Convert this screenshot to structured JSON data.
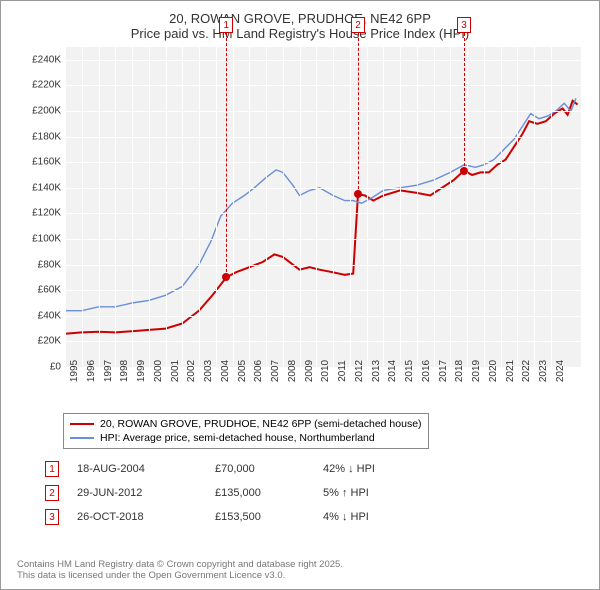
{
  "title_line1": "20, ROWAN GROVE, PRUDHOE, NE42 6PP",
  "title_line2": "Price paid vs. HM Land Registry's House Price Index (HPI)",
  "chart": {
    "type": "line",
    "background_color": "#f2f2f2",
    "grid_color": "#ffffff",
    "ylim": [
      0,
      250000
    ],
    "ytick_step": 20000,
    "ylabels": [
      "£0",
      "£20K",
      "£40K",
      "£60K",
      "£80K",
      "£100K",
      "£120K",
      "£140K",
      "£160K",
      "£180K",
      "£200K",
      "£220K",
      "£240K"
    ],
    "xlabels": [
      "1995",
      "1996",
      "1997",
      "1998",
      "1999",
      "2000",
      "2001",
      "2002",
      "2003",
      "2004",
      "2005",
      "2006",
      "2007",
      "2008",
      "2009",
      "2010",
      "2011",
      "2012",
      "2013",
      "2014",
      "2015",
      "2016",
      "2017",
      "2018",
      "2019",
      "2020",
      "2021",
      "2022",
      "2023",
      "2024"
    ],
    "xmin": 1995,
    "xmax": 2025.8,
    "series": [
      {
        "name": "20, ROWAN GROVE, PRUDHOE, NE42 6PP (semi-detached house)",
        "color": "#cc0000",
        "width": 2,
        "data": [
          [
            1995,
            26000
          ],
          [
            1996,
            27000
          ],
          [
            1997,
            27500
          ],
          [
            1998,
            27000
          ],
          [
            1999,
            28000
          ],
          [
            2000,
            29000
          ],
          [
            2001,
            30000
          ],
          [
            2002,
            34000
          ],
          [
            2003,
            44000
          ],
          [
            2003.8,
            56000
          ],
          [
            2004.63,
            70000
          ],
          [
            2005.2,
            74000
          ],
          [
            2006,
            78000
          ],
          [
            2006.8,
            82000
          ],
          [
            2007.5,
            88000
          ],
          [
            2008,
            86000
          ],
          [
            2008.6,
            80000
          ],
          [
            2009,
            76000
          ],
          [
            2009.6,
            78000
          ],
          [
            2010.2,
            76000
          ],
          [
            2011,
            74000
          ],
          [
            2011.7,
            72000
          ],
          [
            2012.2,
            73000
          ],
          [
            2012.49,
            135000
          ],
          [
            2012.9,
            134000
          ],
          [
            2013.4,
            130000
          ],
          [
            2014,
            134000
          ],
          [
            2015,
            138000
          ],
          [
            2016,
            136000
          ],
          [
            2016.8,
            134000
          ],
          [
            2017.5,
            140000
          ],
          [
            2018.2,
            146000
          ],
          [
            2018.82,
            153500
          ],
          [
            2019.3,
            150000
          ],
          [
            2019.8,
            152000
          ],
          [
            2020.3,
            152000
          ],
          [
            2020.8,
            158000
          ],
          [
            2021.3,
            162000
          ],
          [
            2021.8,
            172000
          ],
          [
            2022.3,
            182000
          ],
          [
            2022.7,
            192000
          ],
          [
            2023.2,
            190000
          ],
          [
            2023.7,
            192000
          ],
          [
            2024.2,
            198000
          ],
          [
            2024.7,
            202000
          ],
          [
            2025.0,
            197000
          ],
          [
            2025.3,
            208000
          ],
          [
            2025.6,
            205000
          ]
        ]
      },
      {
        "name": "HPI: Average price, semi-detached house, Northumberland",
        "color": "#6a8fd8",
        "width": 1.4,
        "data": [
          [
            1995,
            44000
          ],
          [
            1996,
            44000
          ],
          [
            1997,
            47000
          ],
          [
            1998,
            47000
          ],
          [
            1999,
            50000
          ],
          [
            2000,
            52000
          ],
          [
            2001,
            56000
          ],
          [
            2002,
            63000
          ],
          [
            2003,
            80000
          ],
          [
            2003.7,
            98000
          ],
          [
            2004.3,
            118000
          ],
          [
            2005,
            128000
          ],
          [
            2005.7,
            134000
          ],
          [
            2006.3,
            140000
          ],
          [
            2007,
            148000
          ],
          [
            2007.6,
            154000
          ],
          [
            2008,
            152000
          ],
          [
            2008.6,
            142000
          ],
          [
            2009,
            134000
          ],
          [
            2009.6,
            138000
          ],
          [
            2010.2,
            140000
          ],
          [
            2011,
            134000
          ],
          [
            2011.7,
            130000
          ],
          [
            2012.2,
            130000
          ],
          [
            2012.7,
            128000
          ],
          [
            2013.3,
            132000
          ],
          [
            2014,
            138000
          ],
          [
            2015,
            140000
          ],
          [
            2016,
            142000
          ],
          [
            2017,
            146000
          ],
          [
            2018,
            152000
          ],
          [
            2018.82,
            158000
          ],
          [
            2019.5,
            156000
          ],
          [
            2020,
            158000
          ],
          [
            2020.6,
            162000
          ],
          [
            2021.2,
            170000
          ],
          [
            2021.8,
            178000
          ],
          [
            2022.3,
            188000
          ],
          [
            2022.8,
            198000
          ],
          [
            2023.3,
            194000
          ],
          [
            2023.8,
            196000
          ],
          [
            2024.3,
            200000
          ],
          [
            2024.8,
            206000
          ],
          [
            2025.2,
            200000
          ],
          [
            2025.5,
            210000
          ]
        ]
      }
    ],
    "markers": [
      {
        "n": "1",
        "x": 2004.63,
        "y": 70000,
        "color": "#cc0000"
      },
      {
        "n": "2",
        "x": 2012.49,
        "y": 135000,
        "color": "#cc0000"
      },
      {
        "n": "3",
        "x": 2018.82,
        "y": 153500,
        "color": "#cc0000"
      }
    ]
  },
  "legend": [
    {
      "color": "#cc0000",
      "width": 2,
      "label": "20, ROWAN GROVE, PRUDHOE, NE42 6PP (semi-detached house)"
    },
    {
      "color": "#6a8fd8",
      "width": 1.4,
      "label": "HPI: Average price, semi-detached house, Northumberland"
    }
  ],
  "sales": [
    {
      "n": "1",
      "date": "18-AUG-2004",
      "price": "£70,000",
      "diff": "42% ↓ HPI",
      "color": "#cc0000"
    },
    {
      "n": "2",
      "date": "29-JUN-2012",
      "price": "£135,000",
      "diff": "5% ↑ HPI",
      "color": "#cc0000"
    },
    {
      "n": "3",
      "date": "26-OCT-2018",
      "price": "£153,500",
      "diff": "4% ↓ HPI",
      "color": "#cc0000"
    }
  ],
  "footer_line1": "Contains HM Land Registry data © Crown copyright and database right 2025.",
  "footer_line2": "This data is licensed under the Open Government Licence v3.0."
}
